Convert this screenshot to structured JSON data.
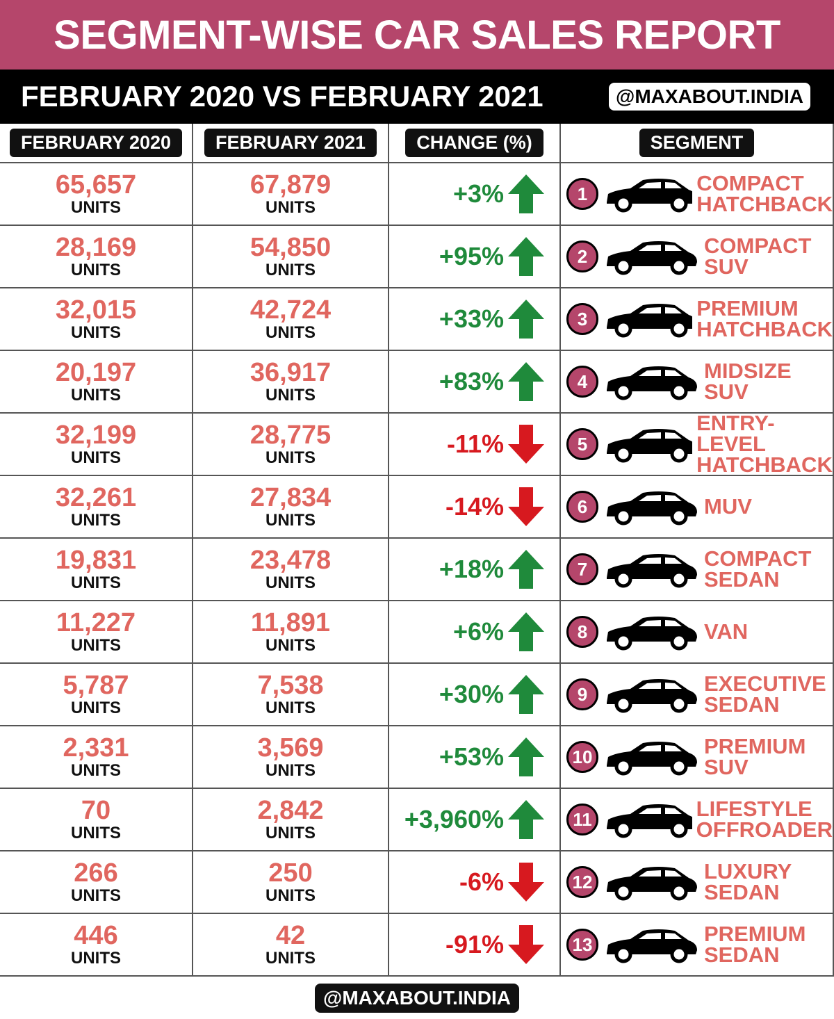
{
  "header": {
    "title": "SEGMENT-WISE CAR SALES REPORT",
    "subtitle": "FEBRUARY 2020 VS FEBRUARY 2021",
    "handle": "@MAXABOUT.INDIA"
  },
  "table": {
    "columns": [
      "FEBRUARY 2020",
      "FEBRUARY 2021",
      "CHANGE (%)",
      "SEGMENT"
    ],
    "units_label": "UNITS",
    "rows": [
      {
        "feb_2020": "65,657",
        "feb_2021": "67,879",
        "change": "+3%",
        "rank": "1",
        "segment": [
          "COMPACT",
          "HATCHBACK"
        ]
      },
      {
        "feb_2020": "28,169",
        "feb_2021": "54,850",
        "change": "+95%",
        "rank": "2",
        "segment": [
          "COMPACT",
          "SUV"
        ]
      },
      {
        "feb_2020": "32,015",
        "feb_2021": "42,724",
        "change": "+33%",
        "rank": "3",
        "segment": [
          "PREMIUM",
          "HATCHBACK"
        ]
      },
      {
        "feb_2020": "20,197",
        "feb_2021": "36,917",
        "change": "+83%",
        "rank": "4",
        "segment": [
          "MIDSIZE",
          "SUV"
        ]
      },
      {
        "feb_2020": "32,199",
        "feb_2021": "28,775",
        "change": "-11%",
        "rank": "5",
        "segment": [
          "ENTRY-LEVEL",
          "HATCHBACK"
        ]
      },
      {
        "feb_2020": "32,261",
        "feb_2021": "27,834",
        "change": "-14%",
        "rank": "6",
        "segment": [
          "MUV"
        ]
      },
      {
        "feb_2020": "19,831",
        "feb_2021": "23,478",
        "change": "+18%",
        "rank": "7",
        "segment": [
          "COMPACT",
          "SEDAN"
        ]
      },
      {
        "feb_2020": "11,227",
        "feb_2021": "11,891",
        "change": "+6%",
        "rank": "8",
        "segment": [
          "VAN"
        ]
      },
      {
        "feb_2020": "5,787",
        "feb_2021": "7,538",
        "change": "+30%",
        "rank": "9",
        "segment": [
          "EXECUTIVE",
          "SEDAN"
        ]
      },
      {
        "feb_2020": "2,331",
        "feb_2021": "3,569",
        "change": "+53%",
        "rank": "10",
        "segment": [
          "PREMIUM",
          "SUV"
        ]
      },
      {
        "feb_2020": "70",
        "feb_2021": "2,842",
        "change": "+3,960%",
        "rank": "11",
        "segment": [
          "LIFESTYLE",
          "OFFROADER"
        ]
      },
      {
        "feb_2020": "266",
        "feb_2021": "250",
        "change": "-6%",
        "rank": "12",
        "segment": [
          "LUXURY",
          "SEDAN"
        ]
      },
      {
        "feb_2020": "446",
        "feb_2021": "42",
        "change": "-91%",
        "rank": "13",
        "segment": [
          "PREMIUM",
          "SEDAN"
        ]
      }
    ]
  },
  "footer": {
    "handle": "@MAXABOUT.INDIA"
  }
}
